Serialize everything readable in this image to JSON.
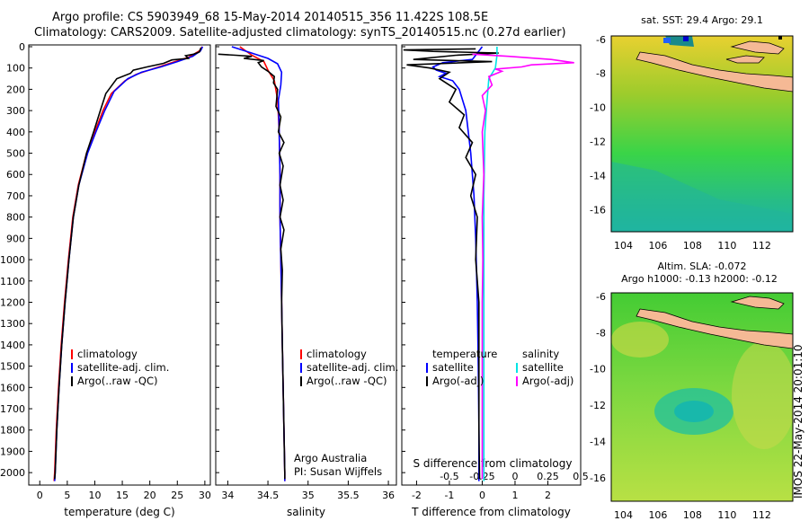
{
  "header": {
    "title_line1": "Argo profile: CS 5903949_68 15-May-2014 20140515_356 11.422S 108.5E",
    "title_line2": "Climatology: CARS2009. Satellite-adjusted climatology: synTS_20140515.nc (0.27d earlier)"
  },
  "colors": {
    "climatology": "#ff0000",
    "satellite": "#0000ff",
    "argo": "#000000",
    "satellite_salinity": "#00e5e5",
    "argo_salinity": "#ff00ff",
    "land": "#f5b995"
  },
  "chart_data": [
    {
      "type": "line",
      "id": "temperature",
      "xlabel": "temperature (deg C)",
      "ylim": [
        0,
        2050
      ],
      "xlim": [
        -2,
        31
      ],
      "xticks": [
        0,
        5,
        10,
        15,
        20,
        25,
        30
      ],
      "yticks": [
        0,
        100,
        200,
        300,
        400,
        500,
        600,
        700,
        800,
        900,
        1000,
        1100,
        1200,
        1300,
        1400,
        1500,
        1600,
        1700,
        1800,
        1900,
        2000
      ],
      "legend": [
        "climatology",
        "satellite-adj. clim.",
        "Argo(..raw -QC)"
      ],
      "series": [
        {
          "name": "climatology",
          "color": "#ff0000",
          "points": [
            [
              29.5,
              0
            ],
            [
              29,
              20
            ],
            [
              27,
              50
            ],
            [
              24,
              75
            ],
            [
              21,
              100
            ],
            [
              17.5,
              130
            ],
            [
              15.5,
              160
            ],
            [
              13,
              220
            ],
            [
              11.5,
              300
            ],
            [
              10,
              400
            ],
            [
              8.5,
              500
            ],
            [
              7,
              650
            ],
            [
              6,
              800
            ],
            [
              5.2,
              1000
            ],
            [
              4.5,
              1200
            ],
            [
              3.9,
              1400
            ],
            [
              3.4,
              1600
            ],
            [
              3,
              1800
            ],
            [
              2.7,
              2000
            ],
            [
              2.6,
              2040
            ]
          ]
        },
        {
          "name": "satellite-adj. clim.",
          "color": "#0000ff",
          "points": [
            [
              29.6,
              0
            ],
            [
              29.2,
              20
            ],
            [
              27.8,
              45
            ],
            [
              25,
              70
            ],
            [
              22,
              95
            ],
            [
              18.5,
              120
            ],
            [
              16,
              150
            ],
            [
              13.5,
              210
            ],
            [
              11.8,
              300
            ],
            [
              10.2,
              400
            ],
            [
              8.7,
              500
            ],
            [
              7.1,
              650
            ],
            [
              6.1,
              800
            ],
            [
              5.3,
              1000
            ],
            [
              4.6,
              1200
            ],
            [
              4,
              1400
            ],
            [
              3.5,
              1600
            ],
            [
              3.1,
              1800
            ],
            [
              2.8,
              2000
            ],
            [
              2.7,
              2040
            ]
          ]
        },
        {
          "name": "Argo(..raw -QC)",
          "color": "#000000",
          "points": [
            [
              29.3,
              5
            ],
            [
              29,
              25
            ],
            [
              28,
              35
            ],
            [
              26.5,
              42
            ],
            [
              27,
              55
            ],
            [
              24,
              62
            ],
            [
              22.5,
              78
            ],
            [
              19.5,
              95
            ],
            [
              17,
              110
            ],
            [
              16.5,
              125
            ],
            [
              14,
              150
            ],
            [
              12,
              220
            ],
            [
              11,
              300
            ],
            [
              9.8,
              400
            ],
            [
              8.5,
              500
            ],
            [
              7.1,
              650
            ],
            [
              6.1,
              800
            ],
            [
              5.3,
              1000
            ],
            [
              4.6,
              1200
            ],
            [
              4,
              1400
            ],
            [
              3.5,
              1600
            ],
            [
              3.1,
              1800
            ],
            [
              2.8,
              2000
            ],
            [
              2.7,
              2030
            ]
          ]
        }
      ]
    },
    {
      "type": "line",
      "id": "salinity",
      "xlabel": "salinity",
      "ylim": [
        0,
        2050
      ],
      "xlim": [
        33.85,
        36.1
      ],
      "xticks": [
        "34",
        "34.5",
        "35",
        "35.5",
        "36"
      ],
      "legend": [
        "climatology",
        "satellite-adj. clim.",
        "Argo(..raw -QC)"
      ],
      "annotations": [
        "Argo Australia",
        "PI: Susan Wijffels"
      ],
      "series": [
        {
          "name": "climatology",
          "color": "#ff0000",
          "points": [
            [
              34.15,
              0
            ],
            [
              34.3,
              40
            ],
            [
              34.45,
              70
            ],
            [
              34.5,
              110
            ],
            [
              34.58,
              160
            ],
            [
              34.62,
              250
            ],
            [
              34.64,
              400
            ],
            [
              34.65,
              600
            ],
            [
              34.65,
              800
            ],
            [
              34.66,
              1000
            ],
            [
              34.67,
              1200
            ],
            [
              34.68,
              1400
            ],
            [
              34.69,
              1600
            ],
            [
              34.7,
              1800
            ],
            [
              34.71,
              2000
            ],
            [
              34.71,
              2040
            ]
          ]
        },
        {
          "name": "satellite-adj. clim.",
          "color": "#0000ff",
          "points": [
            [
              34.05,
              0
            ],
            [
              34.3,
              30
            ],
            [
              34.5,
              55
            ],
            [
              34.62,
              80
            ],
            [
              34.67,
              120
            ],
            [
              34.66,
              180
            ],
            [
              34.63,
              250
            ],
            [
              34.64,
              400
            ],
            [
              34.65,
              600
            ],
            [
              34.65,
              800
            ],
            [
              34.66,
              1000
            ],
            [
              34.67,
              1200
            ],
            [
              34.68,
              1400
            ],
            [
              34.69,
              1600
            ],
            [
              34.7,
              1800
            ],
            [
              34.71,
              2000
            ],
            [
              34.71,
              2040
            ]
          ]
        },
        {
          "name": "Argo(..raw -QC)",
          "color": "#000000",
          "points": [
            [
              33.88,
              35
            ],
            [
              34.1,
              40
            ],
            [
              34.3,
              45
            ],
            [
              34.2,
              55
            ],
            [
              34.45,
              65
            ],
            [
              34.38,
              75
            ],
            [
              34.42,
              95
            ],
            [
              34.5,
              115
            ],
            [
              34.58,
              140
            ],
            [
              34.57,
              170
            ],
            [
              34.62,
              200
            ],
            [
              34.6,
              280
            ],
            [
              34.66,
              330
            ],
            [
              34.63,
              400
            ],
            [
              34.7,
              450
            ],
            [
              34.64,
              500
            ],
            [
              34.69,
              560
            ],
            [
              34.65,
              650
            ],
            [
              34.69,
              720
            ],
            [
              34.65,
              800
            ],
            [
              34.7,
              860
            ],
            [
              34.66,
              950
            ],
            [
              34.68,
              1050
            ],
            [
              34.67,
              1200
            ],
            [
              34.68,
              1400
            ],
            [
              34.69,
              1600
            ],
            [
              34.7,
              1800
            ],
            [
              34.71,
              2000
            ],
            [
              34.71,
              2030
            ]
          ]
        }
      ]
    },
    {
      "type": "line",
      "id": "difference",
      "xlabel": "T difference from climatology",
      "xlabel_top": "S difference from climatology",
      "ylim": [
        0,
        2050
      ],
      "xlim": [
        -2.45,
        3.0
      ],
      "xticks": [
        "-2",
        "-1",
        "0",
        "1",
        "2"
      ],
      "xticks_top": [
        "-0.5",
        "-0.25",
        "0",
        "0.25",
        "0.5"
      ],
      "legend_temperature": {
        "title": "temperature",
        "items": [
          "satellite",
          "Argo(-adj)"
        ]
      },
      "legend_salinity": {
        "title": "salinity",
        "items": [
          "satellite",
          "Argo(-adj)"
        ]
      },
      "series": [
        {
          "name": "temperature satellite",
          "color": "#0000ff",
          "points": [
            [
              0,
              0
            ],
            [
              -0.3,
              60
            ],
            [
              -1.2,
              75
            ],
            [
              -1.5,
              95
            ],
            [
              -1.4,
              110
            ],
            [
              -1.1,
              125
            ],
            [
              -1.3,
              140
            ],
            [
              -0.9,
              160
            ],
            [
              -0.7,
              200
            ],
            [
              -0.5,
              300
            ],
            [
              -0.35,
              500
            ],
            [
              -0.25,
              700
            ],
            [
              -0.2,
              900
            ],
            [
              -0.15,
              1200
            ],
            [
              -0.12,
              1500
            ],
            [
              -0.1,
              1800
            ],
            [
              -0.1,
              2040
            ]
          ]
        },
        {
          "name": "temperature Argo(-adj)",
          "color": "#000000",
          "points": [
            [
              -0.2,
              10
            ],
            [
              -2.4,
              15
            ],
            [
              -1.5,
              22
            ],
            [
              0.5,
              30
            ],
            [
              -0.8,
              40
            ],
            [
              -2.1,
              60
            ],
            [
              0.3,
              70
            ],
            [
              -2.3,
              85
            ],
            [
              -1.6,
              100
            ],
            [
              -1,
              120
            ],
            [
              -1.3,
              150
            ],
            [
              -0.8,
              200
            ],
            [
              -1,
              260
            ],
            [
              -0.55,
              320
            ],
            [
              -0.7,
              380
            ],
            [
              -0.3,
              450
            ],
            [
              -0.5,
              520
            ],
            [
              -0.2,
              600
            ],
            [
              -0.35,
              700
            ],
            [
              -0.15,
              800
            ],
            [
              -0.2,
              1000
            ],
            [
              -0.1,
              1200
            ],
            [
              -0.1,
              1500
            ],
            [
              -0.1,
              1800
            ],
            [
              -0.08,
              2030
            ]
          ]
        },
        {
          "name": "salinity satellite",
          "color": "#00e5e5",
          "points": [
            [
              0.45,
              0
            ],
            [
              0.45,
              40
            ],
            [
              0.4,
              100
            ],
            [
              0.2,
              150
            ],
            [
              0.15,
              250
            ],
            [
              0.08,
              400
            ],
            [
              0.05,
              700
            ],
            [
              0.05,
              1000
            ],
            [
              0.05,
              1500
            ],
            [
              0.05,
              2040
            ]
          ]
        },
        {
          "name": "salinity Argo(-adj)",
          "color": "#ff00ff",
          "points": [
            [
              -0.3,
              35
            ],
            [
              0.8,
              45
            ],
            [
              2.1,
              60
            ],
            [
              2.8,
              75
            ],
            [
              1.5,
              85
            ],
            [
              1.2,
              95
            ],
            [
              0.4,
              105
            ],
            [
              0.6,
              115
            ],
            [
              0.2,
              140
            ],
            [
              0.3,
              180
            ],
            [
              0,
              230
            ],
            [
              0.1,
              300
            ],
            [
              0,
              400
            ],
            [
              0.05,
              600
            ],
            [
              0,
              800
            ],
            [
              0.02,
              1000
            ],
            [
              0,
              1200
            ],
            [
              0,
              1500
            ],
            [
              0,
              1800
            ],
            [
              0,
              2030
            ]
          ]
        }
      ]
    },
    {
      "type": "heatmap",
      "id": "sst-map",
      "title": "sat. SST: 29.4  Argo: 29.1",
      "xticks": [
        "104",
        "106",
        "108",
        "110",
        "112"
      ],
      "yticks": [
        "-6",
        "-8",
        "-10",
        "-12",
        "-14",
        "-16"
      ],
      "xlim": [
        103.3,
        113.8
      ],
      "ylim": [
        -17.3,
        -5.8
      ],
      "marker": [
        108.5,
        -11.42
      ]
    },
    {
      "type": "heatmap",
      "id": "sla-map",
      "title": "Altim. SLA: -0.072",
      "subtitle": "Argo h1000: -0.13 h2000: -0.12",
      "xticks": [
        "104",
        "106",
        "108",
        "110",
        "112"
      ],
      "yticks": [
        "-6",
        "-8",
        "-10",
        "-12",
        "-14",
        "-16"
      ],
      "xlim": [
        103.3,
        113.8
      ],
      "ylim": [
        -17.3,
        -5.8
      ],
      "marker": [
        108.5,
        -11.42
      ]
    }
  ],
  "footer": {
    "timestamp": "IMOS 22-May-2014 20:01:10"
  }
}
